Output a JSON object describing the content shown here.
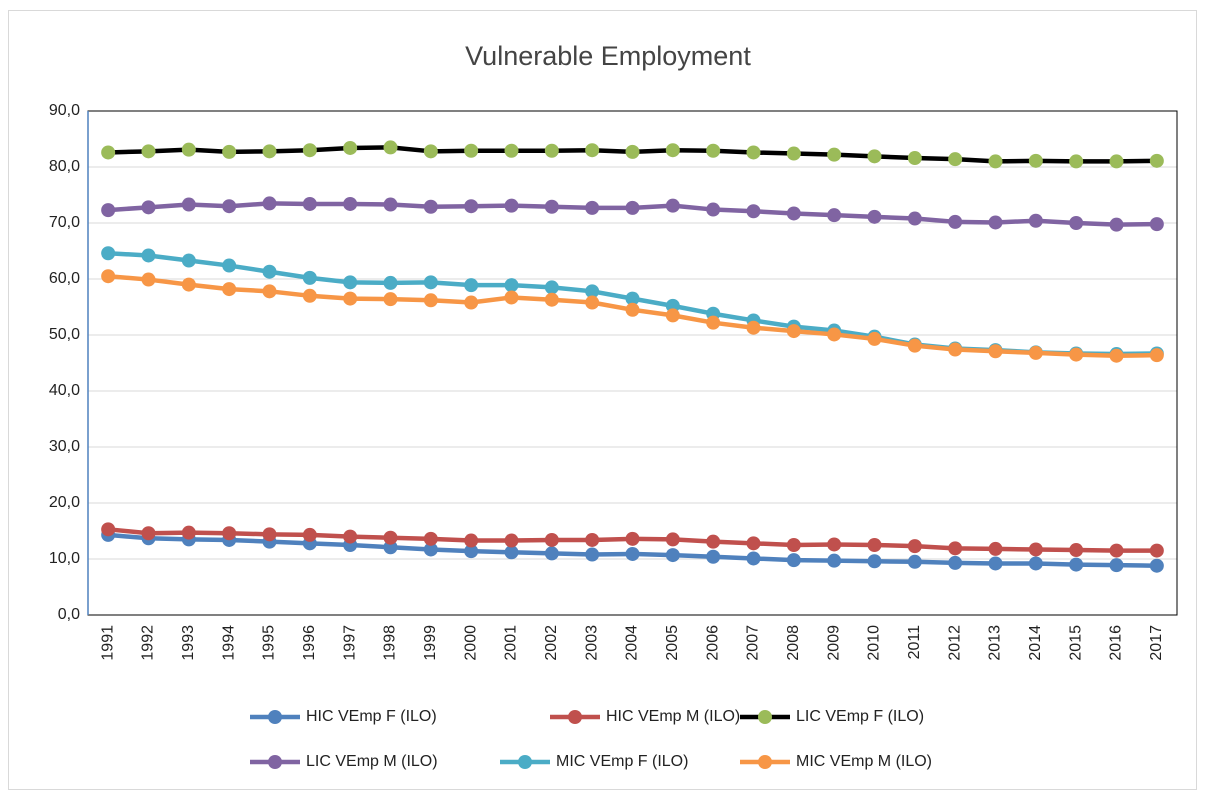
{
  "chart_data": {
    "type": "line",
    "title": "Vulnerable Employment",
    "categories": [
      "1991",
      "1992",
      "1993",
      "1994",
      "1995",
      "1996",
      "1997",
      "1998",
      "1999",
      "2000",
      "2001",
      "2002",
      "2003",
      "2004",
      "2005",
      "2006",
      "2007",
      "2008",
      "2009",
      "2010",
      "2011",
      "2012",
      "2013",
      "2014",
      "2015",
      "2016",
      "2017"
    ],
    "series": [
      {
        "name": "HIC VEmp F (ILO)",
        "color": "#4f81bd",
        "values": [
          14.3,
          13.7,
          13.5,
          13.4,
          13.1,
          12.8,
          12.5,
          12.1,
          11.7,
          11.4,
          11.2,
          11.0,
          10.8,
          10.9,
          10.7,
          10.4,
          10.1,
          9.8,
          9.7,
          9.6,
          9.5,
          9.3,
          9.2,
          9.2,
          9.0,
          8.9,
          8.8
        ]
      },
      {
        "name": "HIC VEmp M (ILO)",
        "color": "#c0504d",
        "values": [
          15.3,
          14.6,
          14.7,
          14.6,
          14.4,
          14.3,
          14.0,
          13.8,
          13.6,
          13.3,
          13.3,
          13.4,
          13.4,
          13.6,
          13.5,
          13.1,
          12.8,
          12.5,
          12.6,
          12.5,
          12.3,
          11.9,
          11.8,
          11.7,
          11.6,
          11.5,
          11.5
        ]
      },
      {
        "name": "LIC VEmp F (ILO)",
        "color": "#000000",
        "marker_color": "#9bbb59",
        "values": [
          82.6,
          82.8,
          83.1,
          82.7,
          82.8,
          83.0,
          83.4,
          83.5,
          82.8,
          82.9,
          82.9,
          82.9,
          83.0,
          82.7,
          83.0,
          82.9,
          82.6,
          82.4,
          82.2,
          81.9,
          81.6,
          81.4,
          81.0,
          81.1,
          81.0,
          81.0,
          81.1
        ]
      },
      {
        "name": "LIC VEmp M (ILO)",
        "color": "#8064a2",
        "values": [
          72.3,
          72.8,
          73.3,
          73.0,
          73.5,
          73.4,
          73.4,
          73.3,
          72.9,
          73.0,
          73.1,
          72.9,
          72.7,
          72.7,
          73.1,
          72.4,
          72.1,
          71.7,
          71.4,
          71.1,
          70.8,
          70.2,
          70.1,
          70.4,
          70.0,
          69.7,
          69.8
        ]
      },
      {
        "name": "MIC VEmp F (ILO)",
        "color": "#4bacc6",
        "values": [
          64.6,
          64.2,
          63.3,
          62.4,
          61.3,
          60.2,
          59.4,
          59.3,
          59.4,
          58.9,
          58.9,
          58.5,
          57.8,
          56.5,
          55.2,
          53.8,
          52.6,
          51.5,
          50.8,
          49.7,
          48.3,
          47.6,
          47.3,
          46.9,
          46.7,
          46.6,
          46.7
        ]
      },
      {
        "name": "MIC VEmp M (ILO)",
        "color": "#f79646",
        "values": [
          60.5,
          59.9,
          59.0,
          58.2,
          57.8,
          57.0,
          56.5,
          56.4,
          56.2,
          55.8,
          56.7,
          56.3,
          55.8,
          54.5,
          53.5,
          52.2,
          51.3,
          50.7,
          50.1,
          49.3,
          48.1,
          47.4,
          47.1,
          46.8,
          46.5,
          46.3,
          46.4
        ]
      }
    ],
    "ylim": [
      0,
      90
    ],
    "yticks": [
      {
        "value": 0,
        "label": "0,0"
      },
      {
        "value": 10,
        "label": "10,0"
      },
      {
        "value": 20,
        "label": "20,0"
      },
      {
        "value": 30,
        "label": "30,0"
      },
      {
        "value": 40,
        "label": "40,0"
      },
      {
        "value": 50,
        "label": "50,0"
      },
      {
        "value": 60,
        "label": "60,0"
      },
      {
        "value": 70,
        "label": "70,0"
      },
      {
        "value": 80,
        "label": "80,0"
      },
      {
        "value": 90,
        "label": "90,0"
      }
    ],
    "grid": true,
    "legend": "bottom"
  }
}
